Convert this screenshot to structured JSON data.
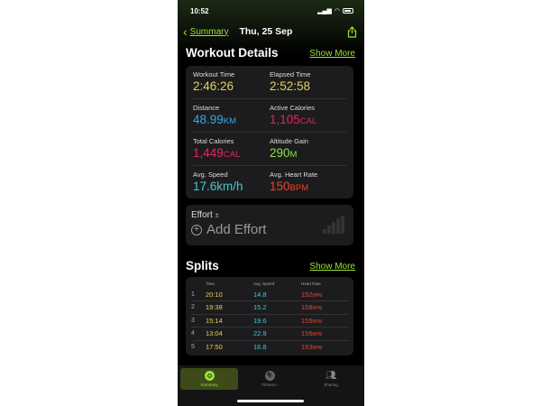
{
  "status_bar": {
    "time": "10:52"
  },
  "nav": {
    "back_label": "Summary",
    "date": "Thu, 25 Sep"
  },
  "workout_details": {
    "title": "Workout Details",
    "show_more": "Show More",
    "metrics": [
      {
        "label": "Workout Time",
        "value": "2:46:26",
        "unit": "",
        "color": "#e3d15a"
      },
      {
        "label": "Elapsed Time",
        "value": "2:52:58",
        "unit": "",
        "color": "#e3d15a"
      },
      {
        "label": "Distance",
        "value": "48.99",
        "unit": "KM",
        "color": "#35a8e8"
      },
      {
        "label": "Active Calories",
        "value": "1,105",
        "unit": "CAL",
        "color": "#e2285a"
      },
      {
        "label": "Total Calories",
        "value": "1,449",
        "unit": "CAL",
        "color": "#e2285a"
      },
      {
        "label": "Altitude Gain",
        "value": "290",
        "unit": "M",
        "color": "#8ce04a"
      },
      {
        "label": "Avg. Speed",
        "value": "17.6km/h",
        "unit": "",
        "color": "#45c8d0"
      },
      {
        "label": "Avg. Heart Rate",
        "value": "150",
        "unit": "BPM",
        "color": "#f0402a"
      }
    ]
  },
  "effort": {
    "label": "Effort",
    "symbol": "±",
    "add_label": "Add Effort"
  },
  "splits": {
    "title": "Splits",
    "show_more": "Show More",
    "headers": [
      "Time",
      "Avg. Speed",
      "Heart Rate"
    ],
    "rows": [
      {
        "n": "1",
        "time": "20:10",
        "speed": "14.8",
        "hr": "152",
        "unit": "BPM"
      },
      {
        "n": "2",
        "time": "19:38",
        "speed": "15.2",
        "hr": "158",
        "unit": "BPM"
      },
      {
        "n": "3",
        "time": "15:14",
        "speed": "19.6",
        "hr": "155",
        "unit": "BPM"
      },
      {
        "n": "4",
        "time": "13:04",
        "speed": "22.9",
        "hr": "156",
        "unit": "BPM"
      },
      {
        "n": "5",
        "time": "17:50",
        "speed": "16.8",
        "hr": "153",
        "unit": "BPM"
      }
    ]
  },
  "tabs": [
    {
      "label": "Summary",
      "active": true
    },
    {
      "label": "Fitness+"
    },
    {
      "label": "Sharing"
    }
  ],
  "colors": {
    "accent": "#9be034",
    "time": "#e3d15a",
    "speed": "#45c8d0",
    "heart": "#f0402a"
  }
}
